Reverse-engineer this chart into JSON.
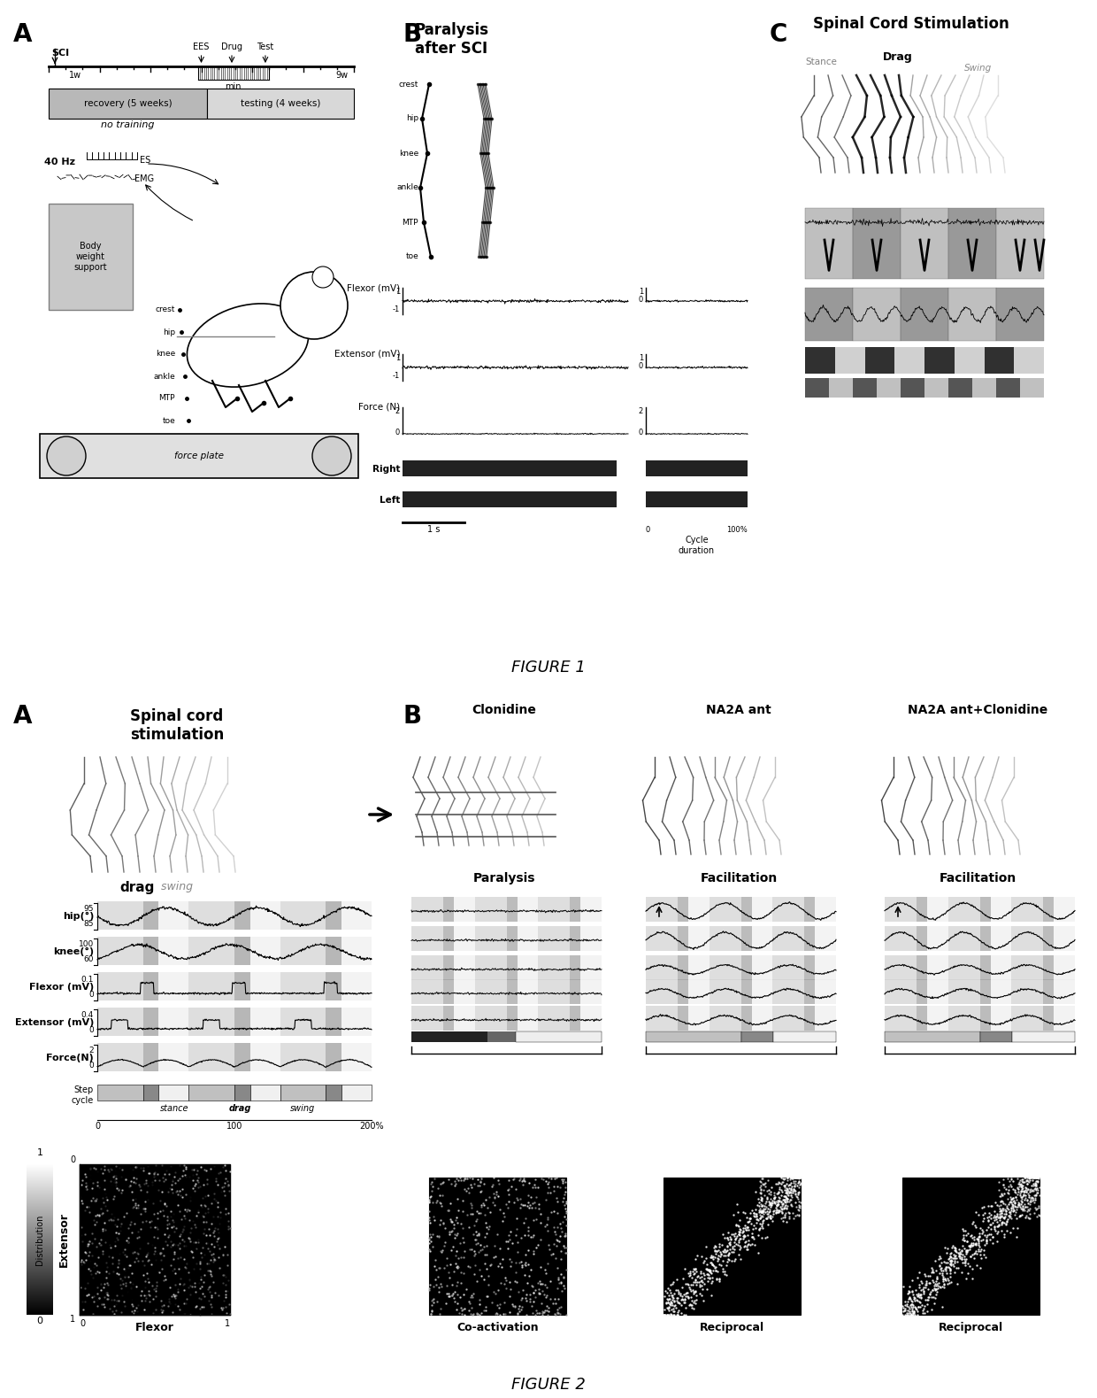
{
  "fig_width": 12.4,
  "fig_height": 15.79,
  "bg_color": "#ffffff",
  "figure1_label": "FIGURE 1",
  "figure2_label": "FIGURE 2",
  "panel_A_label": "A",
  "panel_B_label": "B",
  "panel_C_label": "C",
  "panel_A2_label": "A",
  "panel_B2_label": "B",
  "paralysis_title": "Paralysis\nafter SCI",
  "spinal_cord_title": "Spinal Cord Stimulation",
  "stance_label": "Stance",
  "drag_label": "Drag",
  "swing_label": "Swing",
  "flexor_label": "Flexor (mV)",
  "extensor_label": "Extensor (mV)",
  "force_label": "Force (N)",
  "right_label": "Right",
  "left_label": "Left",
  "spinal_cord_stim_title2": "Spinal cord\nstimulation",
  "drag_swing_label": "drag  swing",
  "hip_label": "hip(°)",
  "knee_label": "knee(°)",
  "flexor_mv_label": "Flexor (mV)",
  "extensor_mv_label": "Extensor (mV)",
  "force_n_label": "Force(N)",
  "step_cycle_label": "Step\ncycle",
  "stance_drag_swing": "stance drag swing",
  "distribution_label": "Distribution",
  "extensor_label2": "Extensor",
  "flexor_label2": "Flexor",
  "clonidine_title": "Clonidine",
  "na2a_title": "NA2A ant",
  "na2a_clon_title": "NA2A ant+Clonidine",
  "paralysis_label": "Paralysis",
  "facilitation_label": "Facilitation",
  "coactivation_label": "Co-activation",
  "reciprocal_label": "Reciprocal",
  "joint_labels": [
    "crest",
    "hip",
    "knee",
    "ankle",
    "MTP",
    "toe"
  ],
  "recovery_text": "recovery (5 weeks)",
  "no_training_text": "no training",
  "testing_text": "testing (4 weeks)",
  "es_text": "40 Hz",
  "body_weight_text": "Body\nweight\nsupport",
  "force_plate_text": "force plate"
}
